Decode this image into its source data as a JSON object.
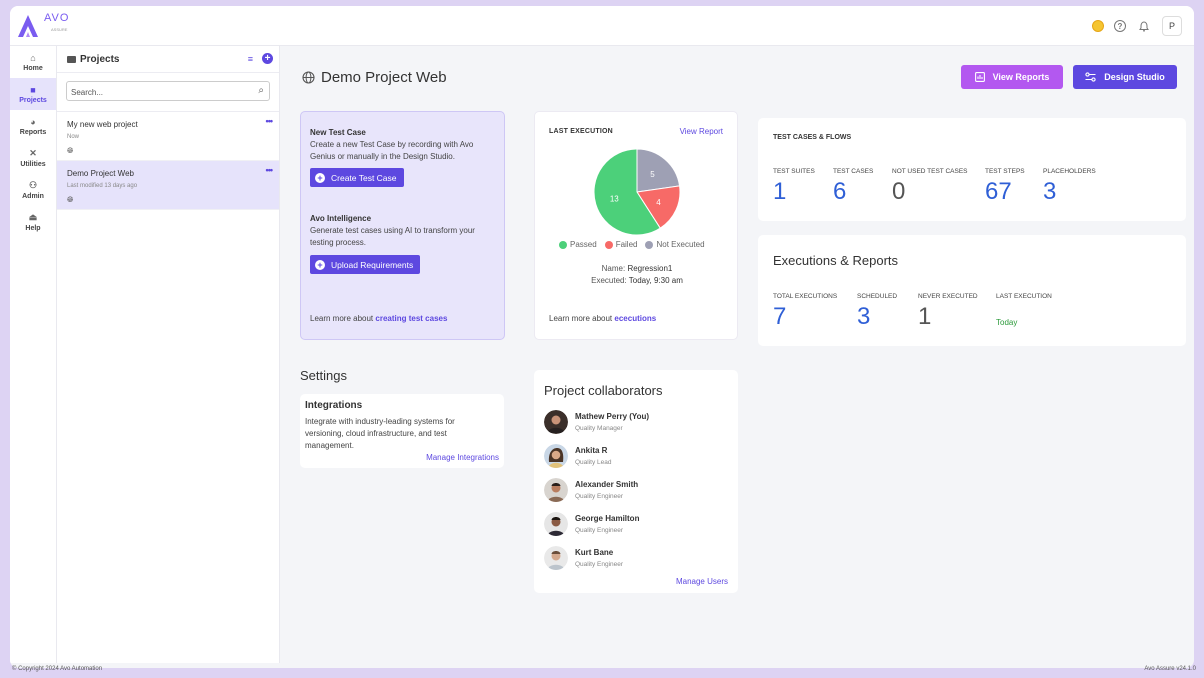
{
  "app": {
    "logo_text": "AVO",
    "logo_sub": "ASSURE"
  },
  "nav": [
    {
      "label": "Home",
      "icon": "home-icon"
    },
    {
      "label": "Projects",
      "icon": "folder-icon",
      "active": true
    },
    {
      "label": "Reports",
      "icon": "pie-chart-icon"
    },
    {
      "label": "Utilities",
      "icon": "tools-icon"
    },
    {
      "label": "Admin",
      "icon": "admin-icon"
    },
    {
      "label": "Help",
      "icon": "help-icon"
    }
  ],
  "header": {
    "avatar_letter": "P",
    "help_glyph": "?"
  },
  "projects": {
    "title": "Projects",
    "search_placeholder": "Search...",
    "items": [
      {
        "name": "My new web project",
        "sub": "Now"
      },
      {
        "name": "Demo Project Web",
        "sub": "Last modified 13 days ago"
      }
    ]
  },
  "main": {
    "title": "Demo Project Web",
    "view_reports_label": "View Reports",
    "design_studio_label": "Design Studio"
  },
  "new_test_case": {
    "title": "New Test Case",
    "desc": "Create a new Test Case by recording with Avo Genius or manually in the Design Studio.",
    "button": "Create Test Case",
    "ai_title": "Avo Intelligence",
    "ai_desc": "Generate test cases using AI to transform your testing process.",
    "ai_button": "Upload Requirements",
    "learn_prefix": "Learn more about",
    "learn_link": "creating test cases"
  },
  "last_execution": {
    "label": "LAST EXECUTION",
    "link": "View Report",
    "chart_data": {
      "type": "pie",
      "slices": [
        {
          "label": "Passed",
          "value": 13,
          "color": "#4cd07a"
        },
        {
          "label": "Failed",
          "value": 4,
          "color": "#f76a67"
        },
        {
          "label": "Not Executed",
          "value": 5,
          "color": "#9ea0b4"
        }
      ]
    },
    "legend": [
      "Passed",
      "Failed",
      "Not Executed"
    ],
    "name_label": "Name:",
    "name_value": "Regression1",
    "executed_label": "Executed:",
    "executed_value": "Today, 9:30 am",
    "learn_prefix": "Learn more about",
    "learn_link": "ececutions"
  },
  "test_cases_flows": {
    "label": "TEST CASES & FLOWS",
    "stats": [
      {
        "label": "TEST SUITES",
        "value": "1"
      },
      {
        "label": "TEST CASES",
        "value": "6"
      },
      {
        "label": "NOT USED TEST CASES",
        "value": "0"
      },
      {
        "label": "TEST STEPS",
        "value": "67"
      },
      {
        "label": "PLACEHOLDERS",
        "value": "3"
      }
    ]
  },
  "executions_reports": {
    "title": "Executions & Reports",
    "stats": [
      {
        "label": "TOTAL EXECUTIONS",
        "value": "7"
      },
      {
        "label": "SCHEDULED",
        "value": "3"
      },
      {
        "label": "NEVER EXECUTED",
        "value": "1"
      },
      {
        "label": "LAST EXECUTION",
        "value": "Today"
      }
    ]
  },
  "settings": {
    "title": "Settings",
    "card_title": "Integrations",
    "card_desc": "Integrate with industry-leading systems for versioning, cloud infrastructure, and test management.",
    "link": "Manage Integrations"
  },
  "collaborators": {
    "title": "Project collaborators",
    "items": [
      {
        "name": "Mathew Perry (You)",
        "role": "Quality Manager"
      },
      {
        "name": "Ankita R",
        "role": "Quality Lead"
      },
      {
        "name": "Alexander Smith",
        "role": "Quality Engineer"
      },
      {
        "name": "George Hamilton",
        "role": "Quality Engineer"
      },
      {
        "name": "Kurt Bane",
        "role": "Quality Engineer"
      }
    ],
    "link": "Manage Users"
  },
  "footer": {
    "left": "© Copyright 2024 Avo Automation",
    "right": "Avo Assure v24.1.0"
  }
}
